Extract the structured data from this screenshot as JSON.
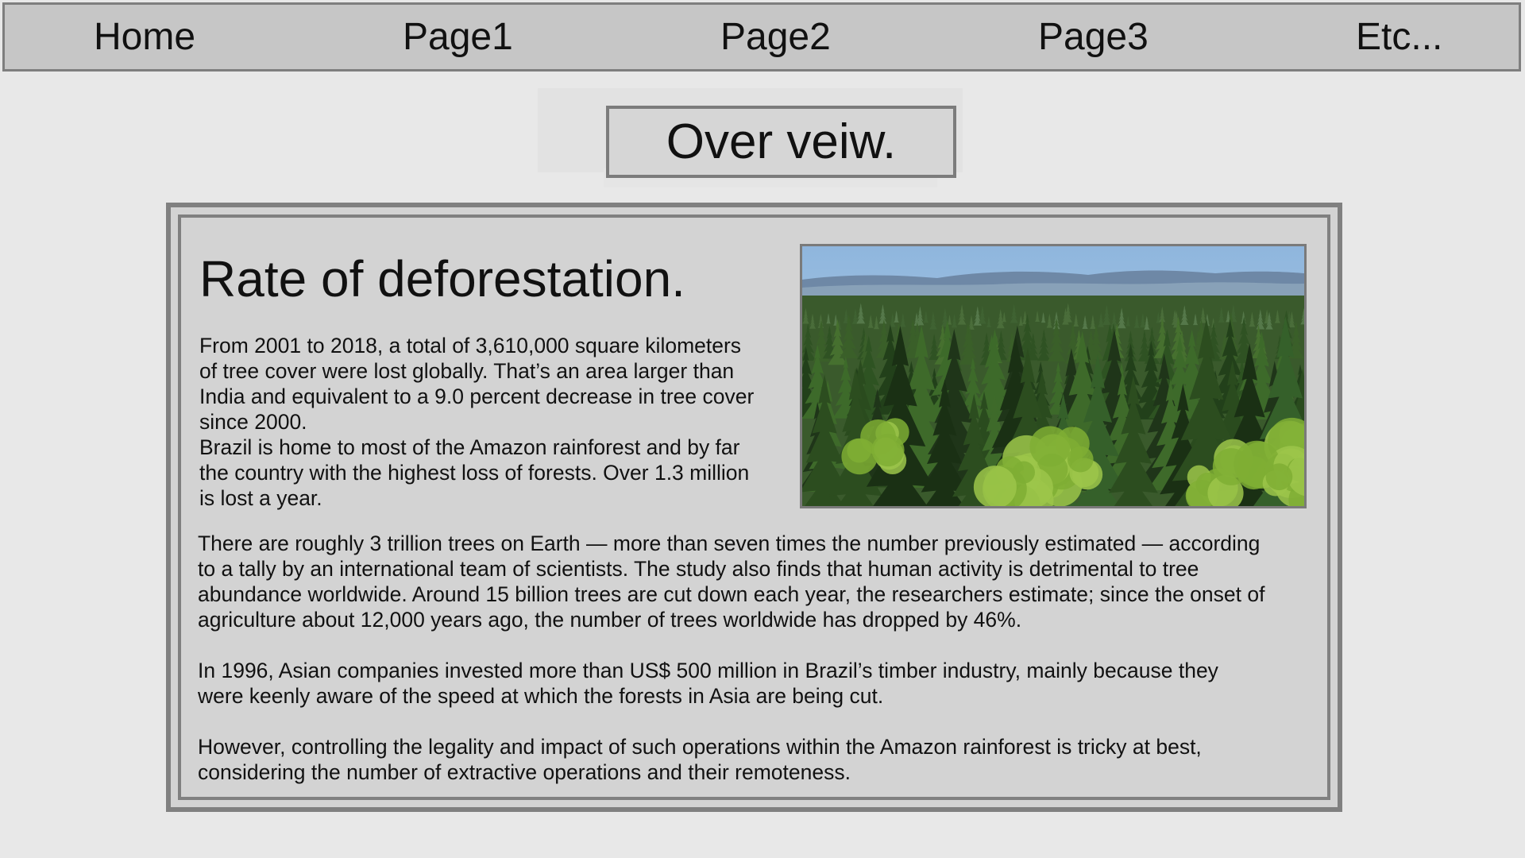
{
  "nav": {
    "items": [
      {
        "label": "Home"
      },
      {
        "label": "Page1"
      },
      {
        "label": "Page2"
      },
      {
        "label": "Page3"
      },
      {
        "label": "Etc..."
      }
    ]
  },
  "overview": {
    "title": "Over veiw."
  },
  "article": {
    "title": "Rate of deforestation.",
    "lead_lines": [
      "From 2001 to 2018, a total of 3,610,000 square kilometers",
      "of tree cover were lost globally. That’s an area larger than",
      "India and equivalent to a 9.0 percent decrease in tree cover",
      "since 2000.",
      "Brazil is home to most of the Amazon rainforest and by far",
      "the country with the highest loss of forests. Over 1.3 million",
      "is lost a year."
    ],
    "paragraphs": [
      {
        "lines": [
          "There are roughly 3 trillion trees on Earth — more than seven times the number previously estimated — according",
          "to a tally by an international team of scientists. The study also finds that human activity is detrimental to tree",
          "abundance worldwide. Around 15 billion trees are cut down each year, the researchers estimate; since the onset of",
          "agriculture about 12,000 years ago, the number of trees worldwide has dropped by 46%."
        ]
      },
      {
        "lines": [
          "In 1996, Asian companies invested more than US$ 500 million in Brazil’s timber industry, mainly because they",
          "were keenly aware of the speed at which the forests in Asia are being cut."
        ]
      },
      {
        "lines": [
          "However, controlling the legality and impact of such operations within the Amazon rainforest is tricky at best,",
          "considering the number of extractive operations and their remoteness."
        ]
      }
    ],
    "image": {
      "subject": "forest-photo",
      "colors": {
        "sky": "#b9d3ea",
        "hills": "#6e88a6",
        "forest_dark": "#1f3519",
        "forest_mid": "#3e6a2a",
        "forest_light": "#9cc54a"
      }
    }
  },
  "colors": {
    "page_background": "#e8e8e8",
    "nav_background": "#c6c6c6",
    "panel_background": "#d3d3d3",
    "border": "#808080"
  }
}
